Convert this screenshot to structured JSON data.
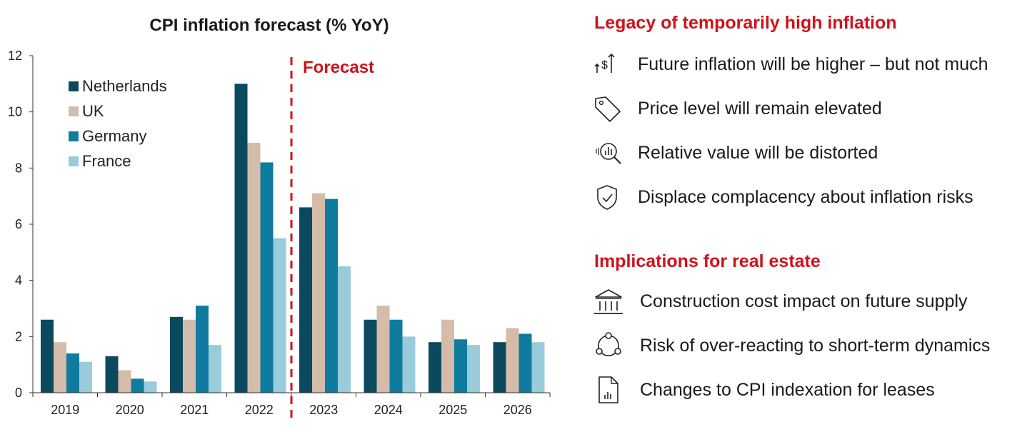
{
  "chart_data": {
    "type": "bar",
    "title": "CPI inflation forecast (% YoY)",
    "categories": [
      "2019",
      "2020",
      "2021",
      "2022",
      "2023",
      "2024",
      "2025",
      "2026"
    ],
    "series": [
      {
        "name": "Netherlands",
        "color": "#0b4a5e",
        "values": [
          2.6,
          1.3,
          2.7,
          11.0,
          6.6,
          2.6,
          1.8,
          1.8
        ]
      },
      {
        "name": "UK",
        "color": "#d5bcaa",
        "values": [
          1.8,
          0.8,
          2.6,
          8.9,
          7.1,
          3.1,
          2.6,
          2.3
        ]
      },
      {
        "name": "Germany",
        "color": "#0f7b9f",
        "values": [
          1.4,
          0.5,
          3.1,
          8.2,
          6.9,
          2.6,
          1.9,
          2.1
        ]
      },
      {
        "name": "France",
        "color": "#99cbdb",
        "values": [
          1.1,
          0.4,
          1.7,
          5.5,
          4.5,
          2.0,
          1.7,
          1.8
        ]
      }
    ],
    "yticks": [
      0,
      2,
      4,
      6,
      8,
      10,
      12
    ],
    "ylim": [
      0,
      12
    ],
    "xlabel": "",
    "ylabel": "",
    "legend_position": "top-left",
    "forecast_label": "Forecast",
    "forecast_starts_after": "2022",
    "forecast_color": "#d0121b"
  },
  "panel": {
    "legacy": {
      "title": "Legacy of temporarily high inflation",
      "items": [
        {
          "icon": "rising-price-icon",
          "text": "Future inflation will be higher – but not much"
        },
        {
          "icon": "price-tag-icon",
          "text": "Price level will remain elevated"
        },
        {
          "icon": "magnifier-chart-icon",
          "text": "Relative value will be distorted"
        },
        {
          "icon": "shield-check-icon",
          "text": "Displace complacency about inflation risks"
        }
      ]
    },
    "implications": {
      "title": "Implications for real estate",
      "items": [
        {
          "icon": "building-columns-icon",
          "text": "Construction cost impact on future supply"
        },
        {
          "icon": "cycle-network-icon",
          "text": "Risk of over-reacting to short-term dynamics"
        },
        {
          "icon": "document-chart-icon",
          "text": "Changes to CPI indexation for leases"
        }
      ]
    }
  }
}
